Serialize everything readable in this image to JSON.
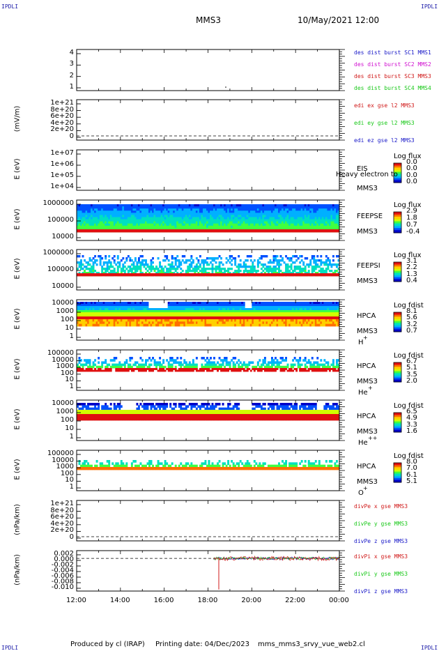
{
  "corners": {
    "tl": "IPDLI",
    "tr": "IPDLI",
    "bl": "IPDLI",
    "br": "IPDLI"
  },
  "header": {
    "spacecraft": "MMS3",
    "datetime": "10/May/2021 12:00"
  },
  "footer": {
    "produced": "Produced by cl (IRAP)",
    "printed": "Printing date: 04/Dec/2023",
    "script": "mms_mms3_srvy_vue_web2.cl"
  },
  "colors": {
    "blue": "#1818c8",
    "magenta": "#d010d0",
    "red": "#d01818",
    "green": "#18c818"
  },
  "chart_data": [
    {
      "type": "line",
      "ylabel": "",
      "yticks": [
        "4",
        "3",
        "2",
        "1"
      ],
      "legend": [
        {
          "text": "des dist burst SC1 MMS1",
          "color": "#1818c8"
        },
        {
          "text": "des dist burst SC2 MMS2",
          "color": "#d010d0"
        },
        {
          "text": "des dist burst SC3 MMS3",
          "color": "#d01818"
        },
        {
          "text": "des dist burst SC4 MMS4",
          "color": "#18c818"
        }
      ]
    },
    {
      "type": "line",
      "ylabel": "(mV/m)",
      "yticks": [
        "1e+21",
        "8e+20",
        "6e+20",
        "4e+20",
        "2e+20",
        "0"
      ],
      "legend": [
        {
          "text": "edi ex gse l2 MMS3",
          "color": "#d01818"
        },
        {
          "text": "edi ey gse l2 MMS3",
          "color": "#18c818"
        },
        {
          "text": "edi ez gse l2 MMS3",
          "color": "#1818c8"
        }
      ]
    },
    {
      "type": "heatmap",
      "ylabel": "E (eV)",
      "yticks": [
        "1e+07",
        "1e+06",
        "1e+05",
        "1e+04"
      ],
      "instrument": [
        "EIS",
        "MMS3"
      ],
      "overlay": "Heavy electron to",
      "cbar": {
        "title": "Log flux",
        "ticks": [
          "0.0",
          "0.0",
          "0.0",
          "0.0"
        ]
      }
    },
    {
      "type": "heatmap",
      "ylabel": "E (eV)",
      "yticks": [
        "1000000",
        "100000",
        "10000"
      ],
      "instrument": [
        "FEEPSE",
        "MMS3"
      ],
      "cbar": {
        "title": "Log flux",
        "ticks": [
          "2.9",
          "1.8",
          "0.7",
          "-0.4"
        ]
      }
    },
    {
      "type": "heatmap",
      "ylabel": "E (eV)",
      "yticks": [
        "1000000",
        "100000",
        "10000"
      ],
      "instrument": [
        "FEEPSI",
        "MMS3"
      ],
      "cbar": {
        "title": "Log flux",
        "ticks": [
          "3.1",
          "2.2",
          "1.3",
          "0.4"
        ]
      }
    },
    {
      "type": "heatmap",
      "ylabel": "E (eV)",
      "yticks": [
        "10000",
        "1000",
        "100",
        "10",
        "1"
      ],
      "instrument": [
        "HPCA",
        "MMS3"
      ],
      "species": "H",
      "charge": "+",
      "cbar": {
        "title": "Log fdist",
        "ticks": [
          "8.1",
          "5.6",
          "3.2",
          "0.7"
        ]
      }
    },
    {
      "type": "heatmap",
      "ylabel": "E (eV)",
      "yticks": [
        "100000",
        "10000",
        "1000",
        "100",
        "10",
        "1"
      ],
      "instrument": [
        "HPCA",
        "MMS3"
      ],
      "species": "He",
      "charge": "+",
      "cbar": {
        "title": "Log fdist",
        "ticks": [
          "6.7",
          "5.1",
          "3.5",
          "2.0"
        ]
      }
    },
    {
      "type": "heatmap",
      "ylabel": "E (eV)",
      "yticks": [
        "10000",
        "1000",
        "100",
        "10",
        "1"
      ],
      "instrument": [
        "HPCA",
        "MMS3"
      ],
      "species": "He",
      "charge": "++",
      "cbar": {
        "title": "Log fdist",
        "ticks": [
          "6.5",
          "4.9",
          "3.3",
          "1.6"
        ]
      }
    },
    {
      "type": "heatmap",
      "ylabel": "E (eV)",
      "yticks": [
        "100000",
        "10000",
        "1000",
        "100",
        "10",
        "1"
      ],
      "instrument": [
        "HPCA",
        "MMS3"
      ],
      "species": "O",
      "charge": "+",
      "cbar": {
        "title": "Log fdist",
        "ticks": [
          "8.0",
          "7.0",
          "6.1",
          "5.1"
        ]
      }
    },
    {
      "type": "line",
      "ylabel": "(nPa/km)",
      "yticks": [
        "1e+21",
        "8e+20",
        "6e+20",
        "4e+20",
        "2e+20",
        "0"
      ],
      "legend": [
        {
          "text": "divPe x gse MMS3",
          "color": "#d01818"
        },
        {
          "text": "divPe y gse MMS3",
          "color": "#18c818"
        },
        {
          "text": "divPe z gse MMS3",
          "color": "#1818c8"
        }
      ]
    },
    {
      "type": "line",
      "ylabel": "(nPa/km)",
      "yticks": [
        "0.002",
        "0.000",
        "-0.002",
        "-0.004",
        "-0.006",
        "-0.008",
        "-0.010"
      ],
      "ylim": [
        -0.0105,
        0.0025
      ],
      "spike": {
        "x": "18:25",
        "y": -0.01
      },
      "legend": [
        {
          "text": "divPi x gse MMS3",
          "color": "#d01818"
        },
        {
          "text": "divPi y gse MMS3",
          "color": "#18c818"
        },
        {
          "text": "divPi z gse MMS3",
          "color": "#1818c8"
        }
      ]
    }
  ],
  "xaxis": {
    "ticks": [
      "12:00",
      "14:00",
      "16:00",
      "18:00",
      "20:00",
      "22:00",
      "00:00"
    ]
  }
}
